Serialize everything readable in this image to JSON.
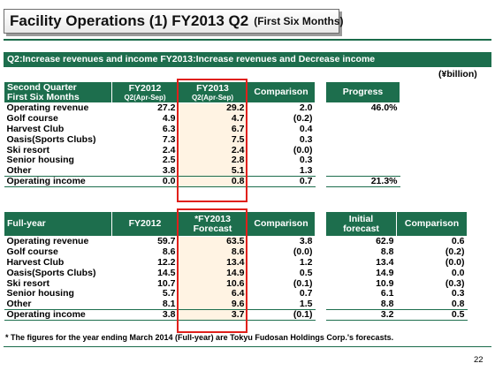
{
  "title": {
    "main": "Facility Operations (1) FY2013 Q2",
    "sub": "(First Six Months)"
  },
  "subtitle": "Q2:Increase revenues and income  FY2013:Increase revenues and Decrease income",
  "unit": "(¥billion)",
  "q2_table": {
    "headers": {
      "row_label_line1": "Second Quarter",
      "row_label_line2": "First Six Months",
      "fy2012": "FY2012",
      "fy2012_sub": "Q2(Apr-Sep)",
      "fy2013": "FY2013",
      "fy2013_sub": "Q2(Apr-Sep)",
      "comparison": "Comparison",
      "progress": "Progress"
    },
    "rows": [
      {
        "label": "Operating revenue",
        "fy2012": "27.2",
        "fy2013": "29.2",
        "comparison": "2.0",
        "progress": "46.0%"
      },
      {
        "label": "Golf course",
        "fy2012": "4.9",
        "fy2013": "4.7",
        "comparison": "(0.2)",
        "progress": ""
      },
      {
        "label": "Harvest Club",
        "fy2012": "6.3",
        "fy2013": "6.7",
        "comparison": "0.4",
        "progress": ""
      },
      {
        "label": "Oasis(Sports Clubs)",
        "fy2012": "7.3",
        "fy2013": "7.5",
        "comparison": "0.3",
        "progress": ""
      },
      {
        "label": "Ski resort",
        "fy2012": "2.4",
        "fy2013": "2.4",
        "comparison": "(0.0)",
        "progress": ""
      },
      {
        "label": "Senior housing",
        "fy2012": "2.5",
        "fy2013": "2.8",
        "comparison": "0.3",
        "progress": ""
      },
      {
        "label": "Other",
        "fy2012": "3.8",
        "fy2013": "5.1",
        "comparison": "1.3",
        "progress": ""
      },
      {
        "label": "Operating income",
        "fy2012": "0.0",
        "fy2013": "0.8",
        "comparison": "0.7",
        "progress": "21.3%"
      }
    ]
  },
  "full_table": {
    "headers": {
      "row_label": "Full-year",
      "fy2012": "FY2012",
      "fy2013_line1": "*FY2013",
      "fy2013_line2": "Forecast",
      "comparison": "Comparison",
      "initial_line1": "Initial",
      "initial_line2": "forecast",
      "comparison2": "Comparison"
    },
    "rows": [
      {
        "label": "Operating revenue",
        "fy2012": "59.7",
        "fy2013": "63.5",
        "comparison": "3.8",
        "initial": "62.9",
        "comparison2": "0.6"
      },
      {
        "label": "Golf course",
        "fy2012": "8.6",
        "fy2013": "8.6",
        "comparison": "(0.0)",
        "initial": "8.8",
        "comparison2": "(0.2)"
      },
      {
        "label": "Harvest Club",
        "fy2012": "12.2",
        "fy2013": "13.4",
        "comparison": "1.2",
        "initial": "13.4",
        "comparison2": "(0.0)"
      },
      {
        "label": "Oasis(Sports Clubs)",
        "fy2012": "14.5",
        "fy2013": "14.9",
        "comparison": "0.5",
        "initial": "14.9",
        "comparison2": "0.0"
      },
      {
        "label": "Ski resort",
        "fy2012": "10.7",
        "fy2013": "10.6",
        "comparison": "(0.1)",
        "initial": "10.9",
        "comparison2": "(0.3)"
      },
      {
        "label": "Senior housing",
        "fy2012": "5.7",
        "fy2013": "6.4",
        "comparison": "0.7",
        "initial": "6.1",
        "comparison2": "0.3"
      },
      {
        "label": "Other",
        "fy2012": "8.1",
        "fy2013": "9.6",
        "comparison": "1.5",
        "initial": "8.8",
        "comparison2": "0.8"
      },
      {
        "label": "Operating income",
        "fy2012": "3.8",
        "fy2013": "3.7",
        "comparison": "(0.1)",
        "initial": "3.2",
        "comparison2": "0.5"
      }
    ]
  },
  "footnote": "* The figures for the year ending March 2014 (Full-year) are Tokyu Fudosan Holdings Corp.'s forecasts.",
  "page_number": "22",
  "colors": {
    "header_green": "#1d6e4d",
    "highlight_fill": "#fff3e3",
    "red_box": "#e0201b"
  }
}
